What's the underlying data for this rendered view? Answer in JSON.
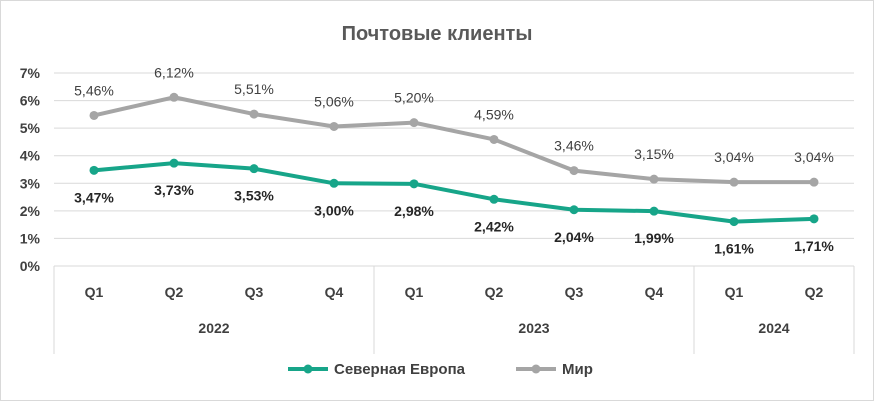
{
  "chart_data": {
    "type": "line",
    "title": "Почтовые клиенты",
    "categories": [
      "Q1",
      "Q2",
      "Q3",
      "Q4",
      "Q1",
      "Q2",
      "Q3",
      "Q4",
      "Q1",
      "Q2"
    ],
    "groups": [
      {
        "label": "2022",
        "count": 4
      },
      {
        "label": "2023",
        "count": 4
      },
      {
        "label": "2024",
        "count": 2
      }
    ],
    "y_ticks": [
      "0%",
      "1%",
      "2%",
      "3%",
      "4%",
      "5%",
      "6%",
      "7%"
    ],
    "ylim": [
      0,
      7
    ],
    "grid": true,
    "legend_position": "bottom",
    "series": [
      {
        "name": "Северная Европа",
        "color": "#17a589",
        "values": [
          3.47,
          3.73,
          3.53,
          3.0,
          2.98,
          2.42,
          2.04,
          1.99,
          1.61,
          1.71
        ],
        "labels": [
          "3,47%",
          "3,73%",
          "3,53%",
          "3,00%",
          "2,98%",
          "2,42%",
          "2,04%",
          "1,99%",
          "1,61%",
          "1,71%"
        ]
      },
      {
        "name": "Мир",
        "color": "#a5a5a5",
        "values": [
          5.46,
          6.12,
          5.51,
          5.06,
          5.2,
          4.59,
          3.46,
          3.15,
          3.04,
          3.04
        ],
        "labels": [
          "5,46%",
          "6,12%",
          "5,51%",
          "5,06%",
          "5,20%",
          "4,59%",
          "3,46%",
          "3,15%",
          "3,04%",
          "3,04%"
        ]
      }
    ]
  }
}
